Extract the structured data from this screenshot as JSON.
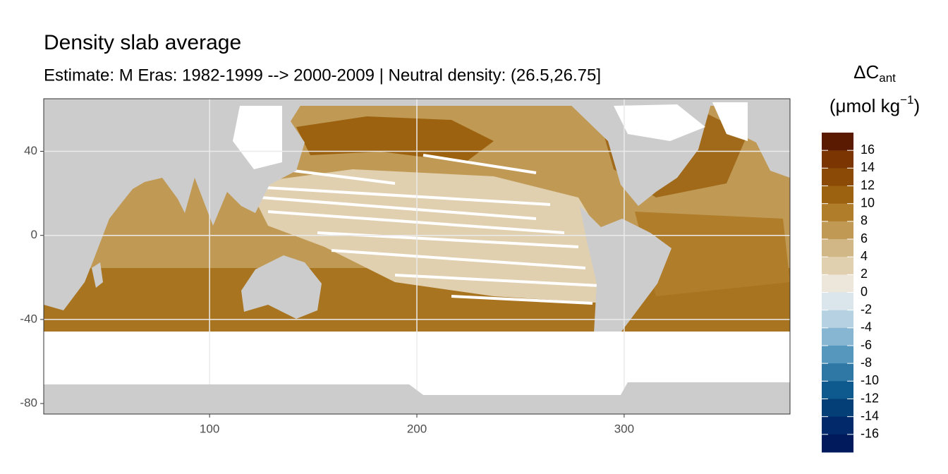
{
  "chart_data": {
    "type": "raster_map",
    "title": "Density slab average",
    "subtitle": "Estimate: M Eras: 1982-1999 --> 2000-2009 | Neutral density: (26.5,26.75]",
    "xlim": [
      20,
      380
    ],
    "ylim": [
      -85,
      65
    ],
    "xticks": [
      100,
      200,
      300
    ],
    "yticks": [
      40,
      0,
      -40,
      -80
    ],
    "legend": {
      "title_main": "ΔC",
      "title_sub": "ant",
      "unit_main": "(μmol kg",
      "unit_sup": "−1",
      "unit_end": ")",
      "limits": [
        18,
        -18
      ],
      "breaks": [
        16,
        14,
        12,
        10,
        8,
        6,
        4,
        2,
        0,
        -2,
        -4,
        -6,
        -8,
        -10,
        -12,
        -14,
        -16
      ],
      "colors": [
        "#5a1a02",
        "#7a3503",
        "#8b4a06",
        "#9c620f",
        "#b07d2a",
        "#c09a55",
        "#d1b686",
        "#e1d0b0",
        "#ede6db",
        "#dbe6ec",
        "#b6d2e2",
        "#86b6d1",
        "#5597bd",
        "#2f78a6",
        "#0e5a8e",
        "#043f78",
        "#02296a",
        "#011a5c"
      ]
    }
  }
}
